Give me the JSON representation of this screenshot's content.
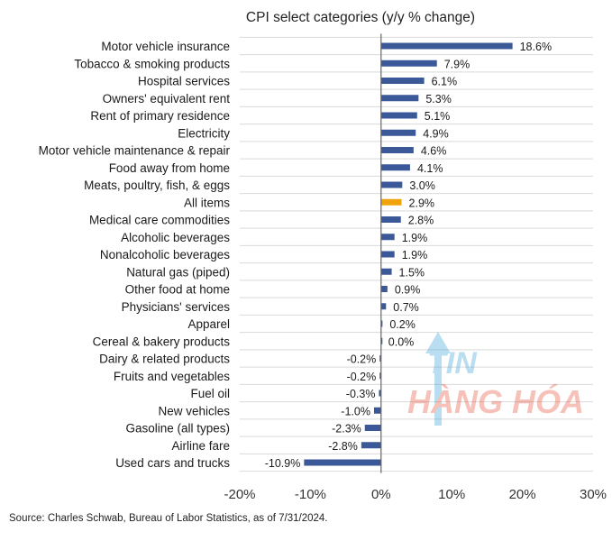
{
  "chart_data": {
    "type": "bar",
    "orientation": "horizontal",
    "title": "CPI select categories (y/y % change)",
    "categories": [
      "Motor vehicle insurance",
      "Tobacco & smoking products",
      "Hospital services",
      "Owners' equivalent rent",
      "Rent of primary residence",
      "Electricity",
      "Motor vehicle maintenance & repair",
      "Food away from home",
      "Meats, poultry, fish, & eggs",
      "All items",
      "Medical care commodities",
      "Alcoholic beverages",
      "Nonalcoholic beverages",
      "Natural gas (piped)",
      "Other food at home",
      "Physicians' services",
      "Apparel",
      "Cereal & bakery products",
      "Dairy & related products",
      "Fruits and vegetables",
      "Fuel oil",
      "New vehicles",
      "Gasoline (all types)",
      "Airline fare",
      "Used cars and trucks"
    ],
    "values": [
      18.6,
      7.9,
      6.1,
      5.3,
      5.1,
      4.9,
      4.6,
      4.1,
      3.0,
      2.9,
      2.8,
      1.9,
      1.9,
      1.5,
      0.9,
      0.7,
      0.2,
      0.0,
      -0.2,
      -0.2,
      -0.3,
      -1.0,
      -2.3,
      -2.8,
      -10.9
    ],
    "value_labels": [
      "18.6%",
      "7.9%",
      "6.1%",
      "5.3%",
      "5.1%",
      "4.9%",
      "4.6%",
      "4.1%",
      "3.0%",
      "2.9%",
      "2.8%",
      "1.9%",
      "1.9%",
      "1.5%",
      "0.9%",
      "0.7%",
      "0.2%",
      "0.0%",
      "-0.2%",
      "-0.2%",
      "-0.3%",
      "-1.0%",
      "-2.3%",
      "-2.8%",
      "-10.9%"
    ],
    "xlim": [
      -20,
      30
    ],
    "xticks": [
      -20,
      -10,
      0,
      10,
      20,
      30
    ],
    "xtick_labels": [
      "-20%",
      "-10%",
      "0%",
      "10%",
      "20%",
      "30%"
    ],
    "xlabel": "",
    "ylabel": "",
    "grid": "horizontal",
    "bar_color": "#3b5998",
    "highlight_category": "All items",
    "highlight_color": "#f0a30a"
  },
  "source": "Source: Charles Schwab, Bureau of Labor Statistics, as of 7/31/2024.",
  "watermark": {
    "line1": "TIN",
    "line2": "HÀNG HÓA",
    "colors": [
      "#e8503a",
      "#3aa1d8"
    ]
  }
}
